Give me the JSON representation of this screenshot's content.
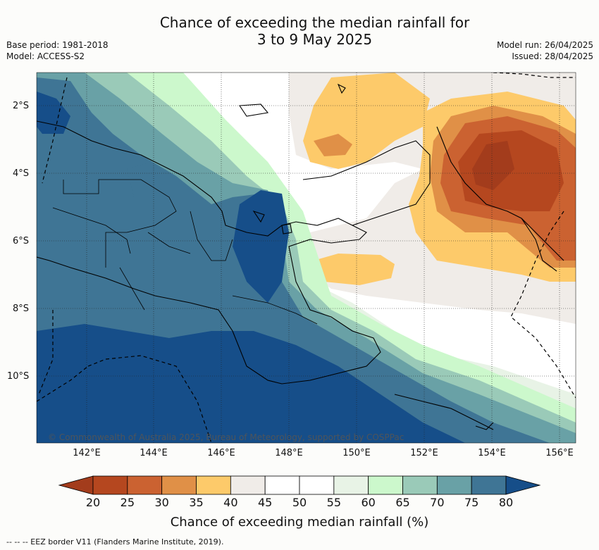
{
  "title": {
    "line1": "Chance of exceeding the median rainfall for",
    "line2": "3 to 9 May 2025"
  },
  "meta": {
    "base_period": "Base period: 1981-2018",
    "model": "Model: ACCESS-S2",
    "model_run": "Model run: 26/04/2025",
    "issued": "Issued: 28/04/2025"
  },
  "map": {
    "lat_labels": [
      "2°S",
      "4°S",
      "6°S",
      "8°S",
      "10°S"
    ],
    "lon_labels": [
      "142°E",
      "144°E",
      "146°E",
      "148°E",
      "150°E",
      "152°E",
      "154°E",
      "156°E"
    ],
    "credit": "© Commonwealth of Australia 2025, Bureau of Meteorology, supported by COSPPac"
  },
  "colorbar": {
    "ticks": [
      "20",
      "25",
      "30",
      "35",
      "40",
      "45",
      "50",
      "55",
      "60",
      "65",
      "70",
      "75",
      "80"
    ],
    "colors": [
      "#a33c1c",
      "#b5471f",
      "#cb6231",
      "#e09047",
      "#fdca6a",
      "#f0ece8",
      "#ffffff",
      "#ffffff",
      "#e8f3e6",
      "#ccf8cc",
      "#9acab8",
      "#69a1a6",
      "#3f7595",
      "#164e89"
    ],
    "label": "Chance of exceeding median rainfall (%)"
  },
  "legend_note": "-- -- -- EEZ border V11 (Flanders Marine Institute, 2019)."
}
